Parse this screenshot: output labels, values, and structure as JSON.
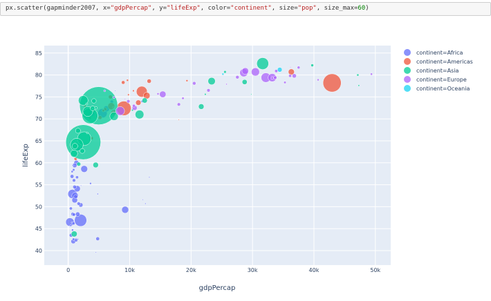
{
  "code_cell": {
    "parts": [
      {
        "t": "px.scatter(gapminder2007, x=",
        "c": "plain"
      },
      {
        "t": "\"gdpPercap\"",
        "c": "str"
      },
      {
        "t": ", y=",
        "c": "plain"
      },
      {
        "t": "\"lifeExp\"",
        "c": "str"
      },
      {
        "t": ", color=",
        "c": "plain"
      },
      {
        "t": "\"continent\"",
        "c": "str"
      },
      {
        "t": ", size=",
        "c": "plain"
      },
      {
        "t": "\"pop\"",
        "c": "str"
      },
      {
        "t": ", size_max=",
        "c": "plain"
      },
      {
        "t": "60",
        "c": "num"
      },
      {
        "t": ")",
        "c": "plain"
      }
    ]
  },
  "chart_data": {
    "type": "scatter",
    "xlabel": "gdpPercap",
    "ylabel": "lifeExp",
    "xlim": [
      -3900,
      52500
    ],
    "ylim": [
      36.7,
      86.7
    ],
    "xticks": [
      0,
      10000,
      20000,
      30000,
      40000,
      50000
    ],
    "xtick_labels": [
      "0",
      "10k",
      "20k",
      "30k",
      "40k",
      "50k"
    ],
    "yticks": [
      40,
      45,
      50,
      55,
      60,
      65,
      70,
      75,
      80,
      85
    ],
    "ytick_labels": [
      "40",
      "45",
      "50",
      "55",
      "60",
      "65",
      "70",
      "75",
      "80",
      "85"
    ],
    "grid": true,
    "background": "#e5ecf6",
    "size_column": "pop",
    "size_max": 60,
    "legend_position": "right",
    "point_fields": [
      "gdpPercap",
      "lifeExp",
      "pop"
    ],
    "series": [
      {
        "name": "continent=Africa",
        "color": "#636efa",
        "points": [
          [
            2014,
            46.9,
            135031164
          ],
          [
            690,
            52.9,
            76511887
          ],
          [
            5581,
            71.3,
            80264543
          ],
          [
            278,
            46.5,
            64606759
          ],
          [
            9270,
            49.3,
            43997828
          ],
          [
            2602,
            58.6,
            42292929
          ],
          [
            1107,
            52.5,
            38139640
          ],
          [
            1463,
            54.1,
            35610177
          ],
          [
            6223,
            72.3,
            33333216
          ],
          [
            3820,
            71.2,
            33757175
          ],
          [
            1056,
            51.5,
            29170398
          ],
          [
            1328,
            60.0,
            22873338
          ],
          [
            824,
            42.1,
            19951656
          ],
          [
            1044,
            59.4,
            19167654
          ],
          [
            2042,
            50.4,
            17696293
          ],
          [
            1545,
            48.3,
            18013409
          ],
          [
            4797,
            42.7,
            12420476
          ],
          [
            470,
            43.5,
            12311143
          ],
          [
            759,
            48.3,
            13327079
          ],
          [
            619,
            56.9,
            12894865
          ],
          [
            1217,
            52.3,
            14326203
          ],
          [
            1043,
            54.5,
            12031795
          ],
          [
            1712,
            63.1,
            12267493
          ],
          [
            1271,
            42.4,
            11746035
          ],
          [
            7093,
            73.9,
            10276158
          ],
          [
            1704,
            50.7,
            10238807
          ],
          [
            12057,
            74.0,
            6036914
          ],
          [
            12570,
            50.7,
            1639131
          ],
          [
            13206,
            56.7,
            1454867
          ],
          [
            10957,
            72.8,
            1250882
          ],
          [
            12154,
            51.6,
            551201
          ],
          [
            1569,
            42.6,
            2012649
          ],
          [
            4513,
            39.6,
            1133066
          ],
          [
            4811,
            52.9,
            2055080
          ],
          [
            926,
            48.2,
            9118773
          ],
          [
            863,
            46.2,
            8860588
          ],
          [
            943,
            56.0,
            9947814
          ],
          [
            1441,
            56.7,
            8078314
          ],
          [
            430,
            49.6,
            8390505
          ],
          [
            863,
            42.6,
            6144562
          ],
          [
            883,
            58.4,
            5701579
          ],
          [
            415,
            45.7,
            3193942
          ],
          [
            706,
            44.7,
            4369038
          ],
          [
            641,
            58.0,
            4906585
          ],
          [
            3633,
            55.3,
            3800610
          ],
          [
            1803,
            64.2,
            3270065
          ],
          [
            753,
            59.4,
            1688359
          ],
          [
            579,
            46.4,
            1472041
          ],
          [
            986,
            65.2,
            710960
          ],
          [
            2082,
            54.8,
            496374
          ],
          [
            7670,
            76.4,
            798094
          ],
          [
            1598,
            65.5,
            199579
          ]
        ]
      },
      {
        "name": "continent=Americas",
        "color": "#EF553B",
        "points": [
          [
            42952,
            78.2,
            301139947
          ],
          [
            9066,
            72.4,
            190010647
          ],
          [
            11978,
            76.2,
            108700891
          ],
          [
            7007,
            72.9,
            44227550
          ],
          [
            12779,
            75.3,
            40301927
          ],
          [
            36319,
            80.7,
            33390141
          ],
          [
            7409,
            71.4,
            28674757
          ],
          [
            11416,
            73.7,
            26084662
          ],
          [
            13172,
            78.6,
            16284741
          ],
          [
            6873,
            75.0,
            13755680
          ],
          [
            5186,
            70.3,
            12572928
          ],
          [
            8948,
            78.3,
            11416987
          ],
          [
            1202,
            60.9,
            8502814
          ],
          [
            3822,
            65.6,
            9119152
          ],
          [
            6025,
            72.2,
            9319622
          ],
          [
            3548,
            70.2,
            7483763
          ],
          [
            5728,
            71.9,
            6939688
          ],
          [
            4173,
            71.8,
            6667147
          ],
          [
            2749,
            72.9,
            5675356
          ],
          [
            9645,
            78.8,
            4133884
          ],
          [
            19329,
            78.7,
            3942491
          ],
          [
            10611,
            76.4,
            3447496
          ],
          [
            9809,
            75.5,
            3242173
          ],
          [
            7321,
            72.6,
            2780132
          ],
          [
            18009,
            69.8,
            1056608
          ]
        ]
      },
      {
        "name": "continent=Asia",
        "color": "#00cc96",
        "points": [
          [
            4959,
            73.0,
            1318683096
          ],
          [
            2452,
            64.7,
            1110396331
          ],
          [
            3541,
            70.7,
            223547000
          ],
          [
            2606,
            65.5,
            169270617
          ],
          [
            1391,
            64.1,
            150448339
          ],
          [
            31656,
            82.6,
            127467972
          ],
          [
            3190,
            71.7,
            91077287
          ],
          [
            2442,
            74.2,
            85262356
          ],
          [
            11606,
            71.0,
            69453570
          ],
          [
            7458,
            70.6,
            65068149
          ],
          [
            944,
            62.1,
            47761980
          ],
          [
            23348,
            78.6,
            49044790
          ],
          [
            975,
            43.8,
            31889923
          ],
          [
            1091,
            63.8,
            28901790
          ],
          [
            4471,
            59.5,
            27499638
          ],
          [
            12452,
            74.2,
            24821286
          ],
          [
            21655,
            72.8,
            27601038
          ],
          [
            1593,
            67.3,
            23301725
          ],
          [
            28718,
            78.4,
            23174294
          ],
          [
            2281,
            62.7,
            22211743
          ],
          [
            3970,
            72.4,
            20378239
          ],
          [
            4185,
            74.1,
            19314747
          ],
          [
            1714,
            59.7,
            14131858
          ],
          [
            39725,
            82.2,
            6980412
          ],
          [
            25523,
            80.7,
            6426679
          ],
          [
            4519,
            72.5,
            6053193
          ],
          [
            10461,
            72.0,
            3921278
          ],
          [
            47143,
            80.0,
            4553009
          ],
          [
            47307,
            77.6,
            2505559
          ],
          [
            22316,
            75.6,
            3204897
          ],
          [
            3096,
            66.8,
            2874127
          ],
          [
            3025,
            73.4,
            4018332
          ],
          [
            29796,
            75.6,
            708573
          ]
        ]
      },
      {
        "name": "continent=Europe",
        "color": "#ab63fa",
        "points": [
          [
            32170,
            79.4,
            82400996
          ],
          [
            8458,
            71.8,
            71158647
          ],
          [
            30470,
            80.7,
            61083916
          ],
          [
            33203,
            79.4,
            60776238
          ],
          [
            28570,
            80.5,
            58147733
          ],
          [
            28821,
            80.9,
            40448191
          ],
          [
            15390,
            75.6,
            38518241
          ],
          [
            10808,
            72.5,
            22276056
          ],
          [
            36798,
            79.8,
            16570613
          ],
          [
            27538,
            79.5,
            10706290
          ],
          [
            20510,
            78.1,
            10642836
          ],
          [
            33693,
            79.4,
            10392226
          ],
          [
            22833,
            76.5,
            10228744
          ],
          [
            18009,
            73.3,
            9956108
          ],
          [
            9787,
            74.0,
            10150265
          ],
          [
            33860,
            80.9,
            9031088
          ],
          [
            36126,
            79.8,
            8199783
          ],
          [
            10681,
            73.0,
            7322858
          ],
          [
            37506,
            81.7,
            7554661
          ],
          [
            35278,
            78.3,
            5468120
          ],
          [
            18678,
            74.7,
            5447502
          ],
          [
            33207,
            79.3,
            5238460
          ],
          [
            49357,
            80.2,
            4627926
          ],
          [
            14619,
            75.7,
            4493312
          ],
          [
            40676,
            78.9,
            4109086
          ],
          [
            7446,
            74.9,
            4552198
          ],
          [
            5937,
            76.4,
            3600523
          ],
          [
            25768,
            77.9,
            2009245
          ],
          [
            9253,
            74.5,
            684736
          ],
          [
            36181,
            81.8,
            301931
          ]
        ]
      },
      {
        "name": "continent=Oceania",
        "color": "#19d3f3",
        "points": [
          [
            34435,
            81.2,
            20434176
          ],
          [
            25185,
            80.2,
            4115771
          ]
        ]
      }
    ]
  }
}
